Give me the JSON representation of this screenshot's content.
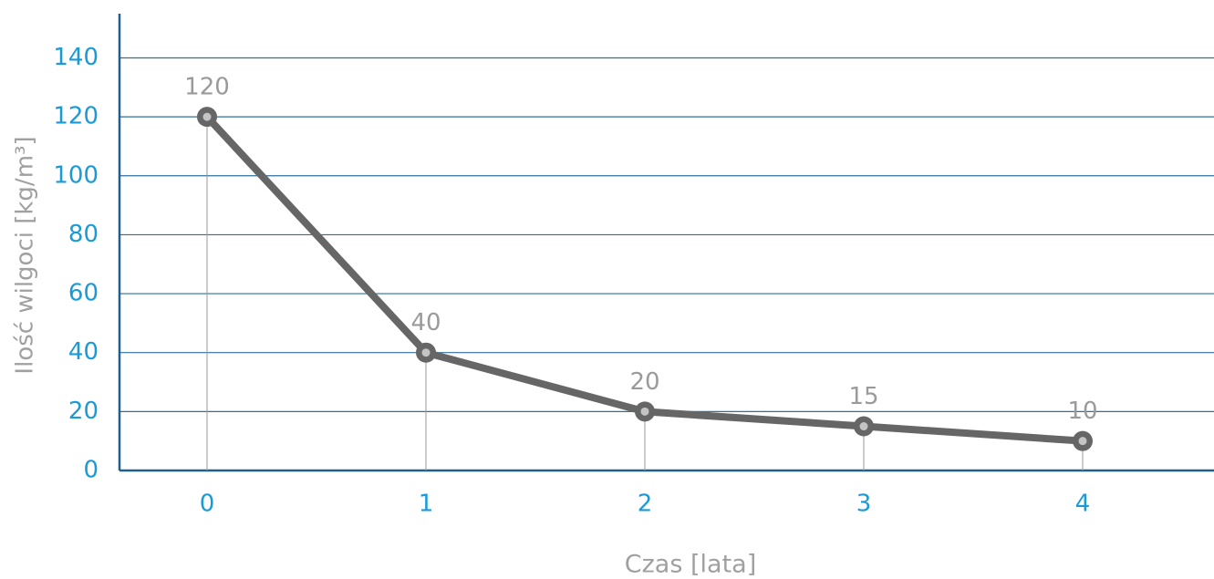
{
  "chart_data": {
    "type": "line",
    "x": [
      0,
      1,
      2,
      3,
      4
    ],
    "series": [
      {
        "color": "#666666",
        "values": [
          120,
          40,
          20,
          15,
          10
        ]
      }
    ],
    "xlim": [
      -0.4,
      4.6
    ],
    "xticks": [
      0,
      1,
      2,
      3,
      4
    ],
    "ylim": [
      0,
      155
    ],
    "yticks": [
      0,
      20,
      40,
      60,
      80,
      100,
      120,
      140
    ],
    "grid": true,
    "x_label": "Czas [lata]",
    "y_label": "Ilość wilgoci [kg/m³]"
  }
}
